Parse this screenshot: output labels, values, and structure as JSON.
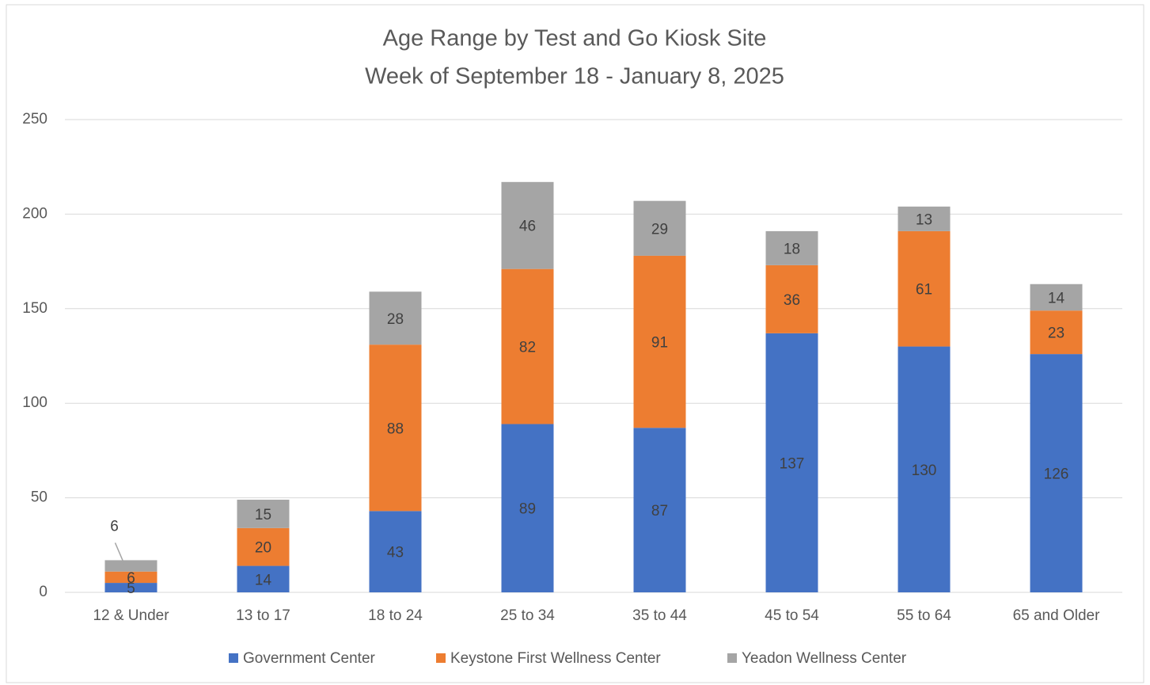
{
  "chart_data": {
    "type": "stacked_bar",
    "title": [
      "Age Range by Test and Go Kiosk Site",
      "Week of September 18 - January 8, 2025"
    ],
    "categories": [
      "12 & Under",
      "13 to 17",
      "18 to 24",
      "25 to 34",
      "35 to 44",
      "45 to 54",
      "55 to 64",
      "65 and Older"
    ],
    "series": [
      {
        "name": "Government Center",
        "color": "#4472c4",
        "values": [
          5,
          14,
          43,
          89,
          87,
          137,
          130,
          126
        ]
      },
      {
        "name": "Keystone First Wellness Center",
        "color": "#ed7d31",
        "values": [
          6,
          20,
          88,
          82,
          91,
          36,
          61,
          23
        ]
      },
      {
        "name": "Yeadon Wellness Center",
        "color": "#a5a5a5",
        "values": [
          6,
          15,
          28,
          46,
          29,
          18,
          13,
          14
        ]
      }
    ],
    "ylim": [
      0,
      250
    ],
    "yticks": [
      0,
      50,
      100,
      150,
      200,
      250
    ],
    "grid": true,
    "legend": "bottom"
  }
}
